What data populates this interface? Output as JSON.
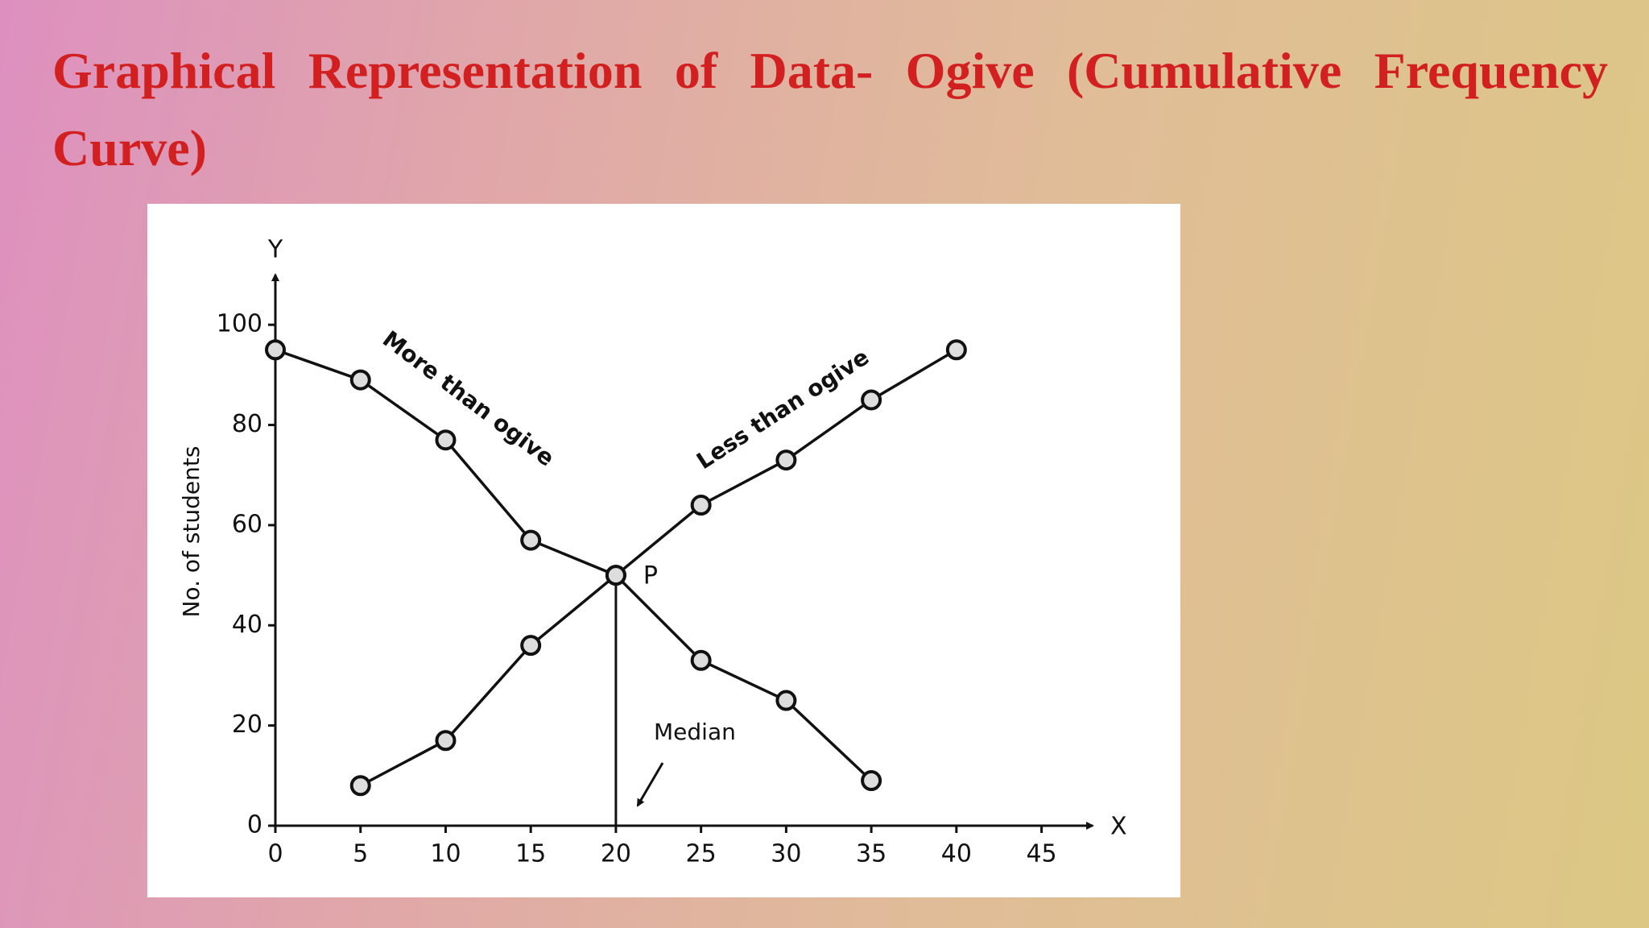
{
  "title": "Graphical Representation of Data- Ogive (Cumulative Frequency Curve)",
  "chart_data": {
    "type": "line",
    "x_axis_letter": "X",
    "y_axis_letter": "Y",
    "ylabel": "No. of students",
    "x": [
      0,
      5,
      10,
      15,
      20,
      25,
      30,
      35,
      40
    ],
    "series": [
      {
        "name": "More than ogive",
        "color": "#111111",
        "values": [
          95,
          89,
          77,
          57,
          50,
          33,
          25,
          9,
          null
        ]
      },
      {
        "name": "Less than ogive",
        "color": "#111111",
        "values": [
          null,
          8,
          17,
          36,
          50,
          64,
          73,
          85,
          95
        ]
      }
    ],
    "intersection": {
      "label": "P",
      "x": 20,
      "y": 50
    },
    "median": {
      "label": "Median",
      "x": 20
    },
    "xlim": [
      0,
      48
    ],
    "ylim": [
      0,
      110
    ],
    "xticks": [
      0,
      5,
      10,
      15,
      20,
      25,
      30,
      35,
      40,
      45
    ],
    "yticks": [
      0,
      20,
      40,
      60,
      80,
      100
    ]
  }
}
